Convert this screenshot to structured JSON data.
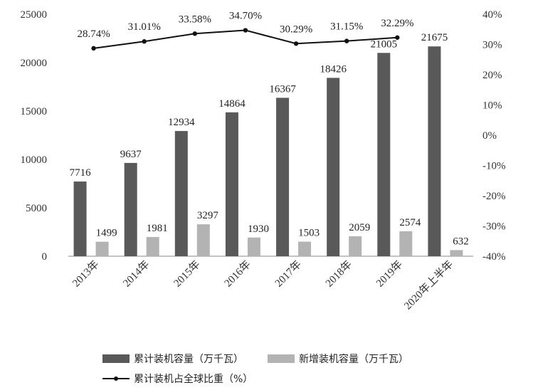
{
  "chart_data": {
    "type": "bar",
    "categories": [
      "2013年",
      "2014年",
      "2015年",
      "2016年",
      "2017年",
      "2018年",
      "2019年",
      "2020年上半年"
    ],
    "series": [
      {
        "name": "累计装机容量（万千瓦）",
        "type": "bar",
        "axis": "left",
        "values": [
          7716,
          9637,
          12934,
          14864,
          16367,
          18426,
          21005,
          21675
        ],
        "labels": [
          "7716",
          "9637",
          "12934",
          "14864",
          "16367",
          "18426",
          "21005",
          "21675"
        ],
        "color": "#595959"
      },
      {
        "name": "新增装机容量（万千瓦）",
        "type": "bar",
        "axis": "left",
        "values": [
          1499,
          1981,
          3297,
          1930,
          1503,
          2059,
          2574,
          632
        ],
        "labels": [
          "1499",
          "1981",
          "3297",
          "1930",
          "1503",
          "2059",
          "2574",
          "632"
        ],
        "color": "#b3b3b3"
      },
      {
        "name": "累计装机占全球比重（%）",
        "type": "line",
        "axis": "right",
        "values": [
          28.74,
          31.01,
          33.58,
          34.7,
          30.29,
          31.15,
          32.29,
          null
        ],
        "labels": [
          "28.74%",
          "31.01%",
          "33.58%",
          "34.70%",
          "30.29%",
          "31.15%",
          "32.29%",
          ""
        ],
        "color": "#111111"
      }
    ],
    "y_left": {
      "min": 0,
      "max": 25000,
      "ticks": [
        0,
        5000,
        10000,
        15000,
        20000,
        25000
      ],
      "tick_labels": [
        "0",
        "5000",
        "10000",
        "15000",
        "20000",
        "25000"
      ]
    },
    "y_right": {
      "min": -40,
      "max": 40,
      "ticks": [
        -40,
        -30,
        -20,
        -10,
        0,
        10,
        20,
        30,
        40
      ],
      "tick_labels": [
        "-40%",
        "-30%",
        "-20%",
        "-10%",
        "0%",
        "10%",
        "20%",
        "30%",
        "40%"
      ]
    },
    "grid": false,
    "legend_position": "bottom",
    "title": "",
    "xlabel": "",
    "ylabel": ""
  }
}
